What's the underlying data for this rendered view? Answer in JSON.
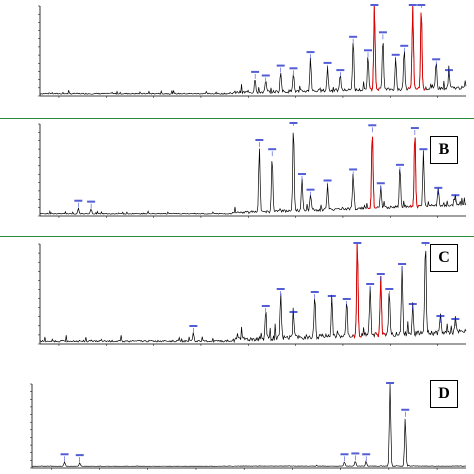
{
  "panels": [
    {
      "label": "",
      "title": "",
      "y_header": "",
      "y_ticks": [
        "",
        "",
        "",
        "",
        "",
        "",
        "",
        "",
        "",
        "",
        "",
        ""
      ],
      "x_ticks": [
        "",
        "",
        "",
        "",
        "",
        "",
        "",
        "",
        ""
      ],
      "chart_data": {
        "type": "line",
        "xlabel": "",
        "ylabel": "",
        "xlim": [
          0,
          1
        ],
        "ylim": [
          0,
          1
        ],
        "peaks": [
          {
            "x": 0.505,
            "h": 0.16
          },
          {
            "x": 0.53,
            "h": 0.12
          },
          {
            "x": 0.565,
            "h": 0.23
          },
          {
            "x": 0.595,
            "h": 0.2
          },
          {
            "x": 0.635,
            "h": 0.38
          },
          {
            "x": 0.675,
            "h": 0.26
          },
          {
            "x": 0.705,
            "h": 0.18
          },
          {
            "x": 0.735,
            "h": 0.55
          },
          {
            "x": 0.77,
            "h": 0.4
          },
          {
            "x": 0.785,
            "h": 1.0
          },
          {
            "x": 0.805,
            "h": 0.6
          },
          {
            "x": 0.835,
            "h": 0.35
          },
          {
            "x": 0.855,
            "h": 0.45
          },
          {
            "x": 0.875,
            "h": 1.0
          },
          {
            "x": 0.895,
            "h": 0.95
          },
          {
            "x": 0.93,
            "h": 0.3
          },
          {
            "x": 0.96,
            "h": 0.18
          }
        ],
        "red_peaks": [
          0.785,
          0.875,
          0.895
        ]
      }
    },
    {
      "label": "B",
      "title": "",
      "y_header": "",
      "y_ticks": [
        "",
        "",
        "",
        "",
        "",
        "",
        "",
        "",
        "",
        "",
        "",
        ""
      ],
      "x_ticks": [
        "",
        "",
        "",
        "",
        "",
        "",
        "",
        "",
        ""
      ],
      "chart_data": {
        "type": "line",
        "xlabel": "",
        "ylabel": "",
        "xlim": [
          0,
          1
        ],
        "ylim": [
          0,
          1
        ],
        "peaks": [
          {
            "x": 0.09,
            "h": 0.06
          },
          {
            "x": 0.12,
            "h": 0.05
          },
          {
            "x": 0.515,
            "h": 0.72
          },
          {
            "x": 0.545,
            "h": 0.62
          },
          {
            "x": 0.595,
            "h": 0.95
          },
          {
            "x": 0.615,
            "h": 0.35
          },
          {
            "x": 0.635,
            "h": 0.18
          },
          {
            "x": 0.675,
            "h": 0.28
          },
          {
            "x": 0.735,
            "h": 0.4
          },
          {
            "x": 0.78,
            "h": 0.88
          },
          {
            "x": 0.8,
            "h": 0.25
          },
          {
            "x": 0.845,
            "h": 0.45
          },
          {
            "x": 0.88,
            "h": 0.85
          },
          {
            "x": 0.9,
            "h": 0.62
          },
          {
            "x": 0.935,
            "h": 0.2
          },
          {
            "x": 0.975,
            "h": 0.12
          }
        ],
        "red_peaks": [
          0.78,
          0.88
        ]
      }
    },
    {
      "label": "C",
      "title": "",
      "y_header": "",
      "y_ticks": [
        "",
        "",
        "",
        "",
        "",
        "",
        "",
        "",
        "",
        "",
        "",
        ""
      ],
      "x_ticks": [
        "",
        "",
        "",
        "",
        "",
        "",
        "",
        "",
        ""
      ],
      "chart_data": {
        "type": "line",
        "xlabel": "",
        "ylabel": "",
        "xlim": [
          0,
          1
        ],
        "ylim": [
          0,
          1
        ],
        "peaks": [
          {
            "x": 0.36,
            "h": 0.08
          },
          {
            "x": 0.53,
            "h": 0.28
          },
          {
            "x": 0.565,
            "h": 0.45
          },
          {
            "x": 0.595,
            "h": 0.22
          },
          {
            "x": 0.645,
            "h": 0.42
          },
          {
            "x": 0.685,
            "h": 0.38
          },
          {
            "x": 0.72,
            "h": 0.35
          },
          {
            "x": 0.745,
            "h": 0.92
          },
          {
            "x": 0.775,
            "h": 0.5
          },
          {
            "x": 0.8,
            "h": 0.6
          },
          {
            "x": 0.82,
            "h": 0.45
          },
          {
            "x": 0.85,
            "h": 0.7
          },
          {
            "x": 0.875,
            "h": 0.3
          },
          {
            "x": 0.905,
            "h": 0.95
          },
          {
            "x": 0.94,
            "h": 0.18
          },
          {
            "x": 0.975,
            "h": 0.15
          }
        ],
        "red_peaks": [
          0.745,
          0.8
        ]
      }
    },
    {
      "label": "D",
      "title": "",
      "y_header": "",
      "y_ticks": [
        "",
        "",
        "",
        "",
        "",
        "",
        "",
        "",
        "",
        "",
        "",
        ""
      ],
      "x_ticks": [
        "",
        "",
        "",
        "",
        "",
        "",
        "",
        "",
        ""
      ],
      "chart_data": {
        "type": "line",
        "xlabel": "",
        "ylabel": "",
        "xlim": [
          0,
          1
        ],
        "ylim": [
          0,
          1
        ],
        "peaks": [
          {
            "x": 0.075,
            "h": 0.05
          },
          {
            "x": 0.11,
            "h": 0.04
          },
          {
            "x": 0.72,
            "h": 0.05
          },
          {
            "x": 0.745,
            "h": 0.06
          },
          {
            "x": 0.77,
            "h": 0.05
          },
          {
            "x": 0.825,
            "h": 1.0
          },
          {
            "x": 0.86,
            "h": 0.58
          }
        ],
        "red_peaks": []
      }
    }
  ],
  "colors": {
    "trace": "#000000",
    "highlight": "#e00000",
    "label": "#1a28c8",
    "border_top": "#2b8a3e"
  }
}
